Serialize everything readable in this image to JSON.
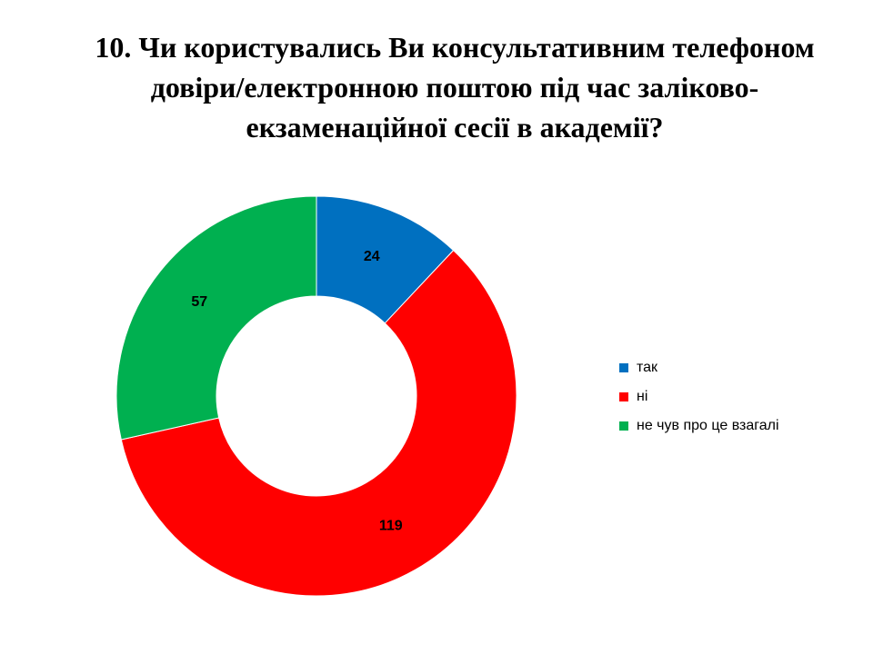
{
  "chart_data": {
    "type": "donut",
    "title": "10. Чи користувались Ви консультативним телефоном довіри/електронною поштою під час заліково-екзаменаційної сесії в академії?",
    "categories": [
      "так",
      "ні",
      "не чув про це взагалі"
    ],
    "values": [
      24,
      119,
      57
    ],
    "colors": [
      "#0070c0",
      "#ff0000",
      "#00b050"
    ],
    "legend": "right"
  }
}
